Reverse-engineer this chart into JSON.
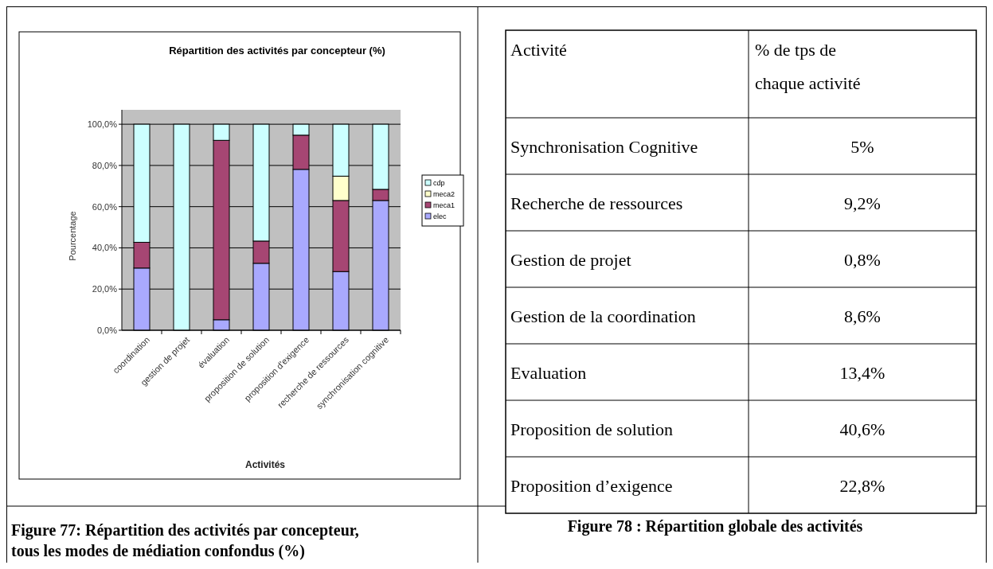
{
  "chart_data": [
    {
      "type": "bar",
      "stacked": true,
      "title": "Répartition des activités par concepteur (%)",
      "xlabel": "Activités",
      "ylabel": "Pourcentage",
      "categories": [
        "coordination",
        "gestion de projet",
        "évaluation",
        "proposition de solution",
        "proposition d'exigence",
        "recherche de ressources",
        "synchronisation cognitive"
      ],
      "series": [
        {
          "name": "elec",
          "color": "#a9a9fe",
          "values": [
            30.2,
            0,
            5.1,
            32.5,
            78.1,
            28.5,
            63.0
          ]
        },
        {
          "name": "meca1",
          "color": "#a64673",
          "values": [
            12.5,
            0,
            87.1,
            10.8,
            16.6,
            34.5,
            5.4
          ]
        },
        {
          "name": "meca2",
          "color": "#ffffcc",
          "values": [
            0,
            0,
            0,
            0,
            0,
            11.8,
            0
          ]
        },
        {
          "name": "cdp",
          "color": "#ccffff",
          "values": [
            57.3,
            100,
            7.8,
            56.7,
            5.3,
            25.2,
            31.6
          ]
        }
      ],
      "ylim": [
        0,
        107
      ],
      "yticks": [
        {
          "value": 0,
          "label": "0,0%"
        },
        {
          "value": 20,
          "label": "20,0%"
        },
        {
          "value": 40,
          "label": "40,0%"
        },
        {
          "value": 60,
          "label": "60,0%"
        },
        {
          "value": 80,
          "label": "80,0%"
        },
        {
          "value": 100,
          "label": "100,0%"
        }
      ],
      "grid": "y",
      "legend": "right",
      "annotations": [
        "Figure 77: Répartition des activités par concepteur, tous les modes de médiation confondus (%)"
      ]
    },
    {
      "type": "other",
      "title": "Figure 78 : Répartition globale des activités",
      "xlabel": "Activité",
      "ylabel": "% de tps de chaque activité",
      "categories": [
        "Synchronisation Cognitive",
        "Recherche de ressources",
        "Gestion de projet",
        "Gestion de la coordination",
        "Evaluation",
        "Proposition de solution",
        "Proposition d’exigence"
      ],
      "value_labels": [
        "5%",
        "9,2%",
        "0,8%",
        "8,6%",
        "13,4%",
        "40,6%",
        "22,8%"
      ]
    }
  ]
}
